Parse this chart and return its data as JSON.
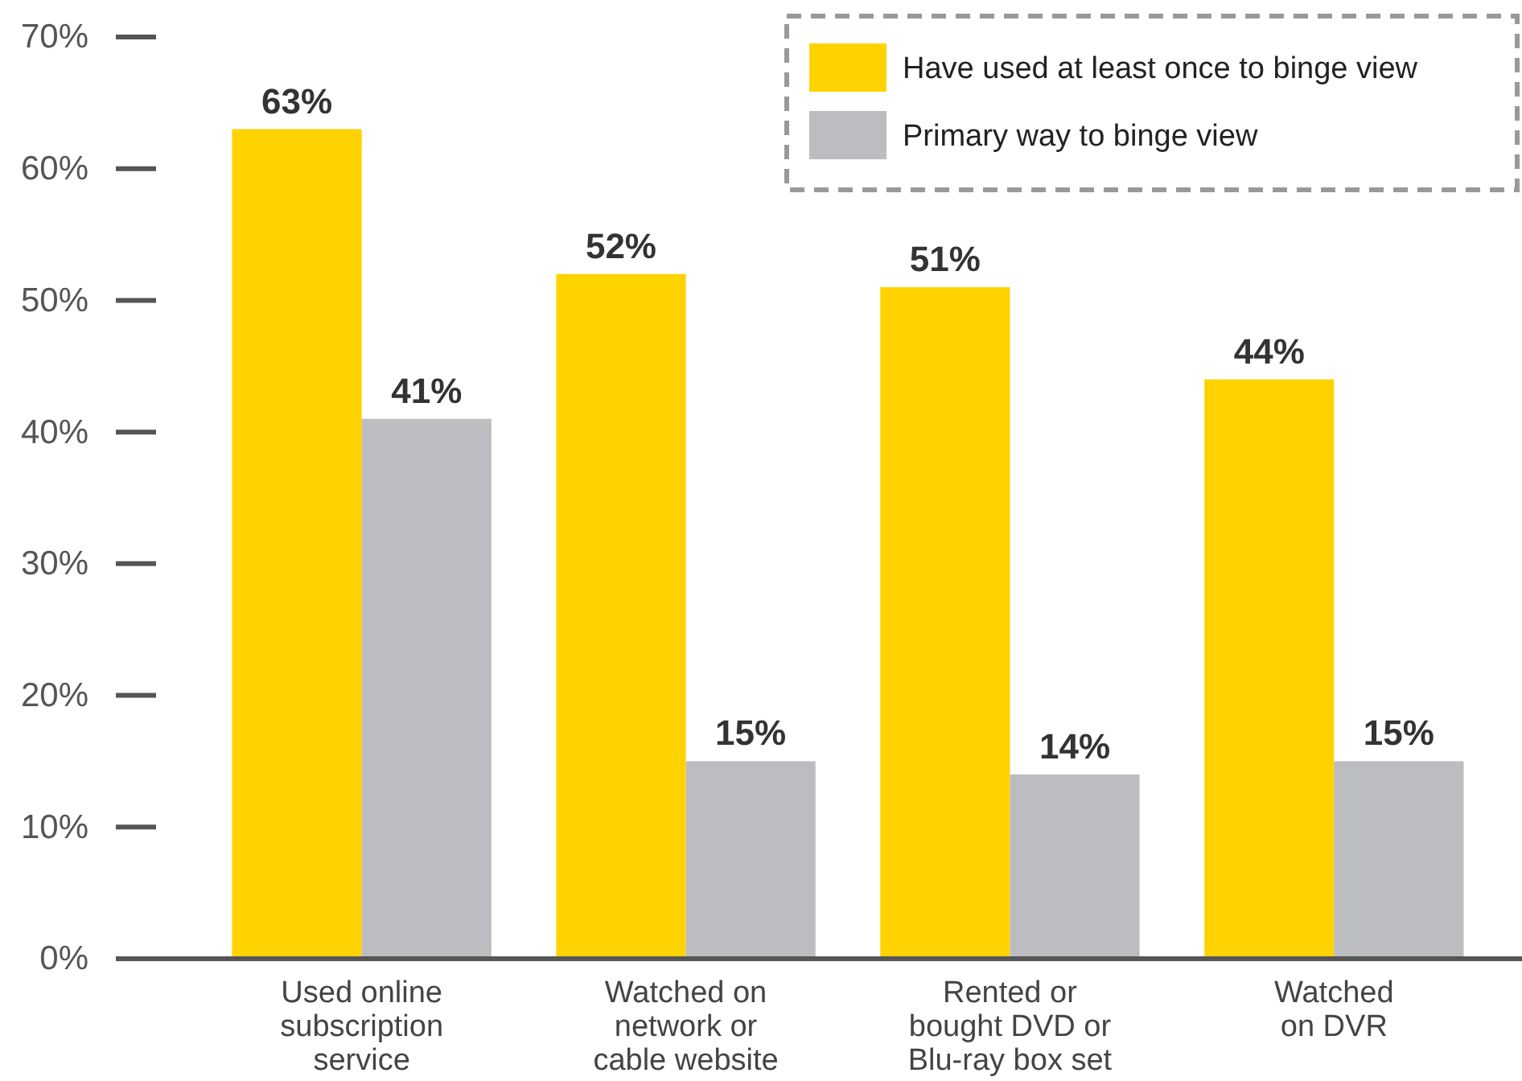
{
  "chart_data": {
    "type": "bar",
    "categories": [
      "Used online\nsubscription\nservice",
      "Watched on\nnetwork or\ncable website",
      "Rented or\nbought DVD or\nBlu-ray box set",
      "Watched\non DVR"
    ],
    "series": [
      {
        "name": "Have used at least once to binge view",
        "color": "#ffd200",
        "values": [
          63,
          52,
          51,
          44
        ]
      },
      {
        "name": "Primary way to binge view",
        "color": "#bcbdc0",
        "values": [
          41,
          15,
          14,
          15
        ]
      }
    ],
    "ylim": [
      0,
      70
    ],
    "yticks": [
      {
        "value": 0,
        "label": "0%"
      },
      {
        "value": 10,
        "label": "10%"
      },
      {
        "value": 20,
        "label": "20%"
      },
      {
        "value": 30,
        "label": "30%"
      },
      {
        "value": 40,
        "label": "40%"
      },
      {
        "value": 50,
        "label": "50%"
      },
      {
        "value": 60,
        "label": "60%"
      },
      {
        "value": 70,
        "label": "70%"
      }
    ],
    "value_labels": [
      [
        "63%",
        "52%",
        "51%",
        "44%"
      ],
      [
        "41%",
        "15%",
        "14%",
        "15%"
      ]
    ],
    "grid": false,
    "legend": "top right"
  }
}
